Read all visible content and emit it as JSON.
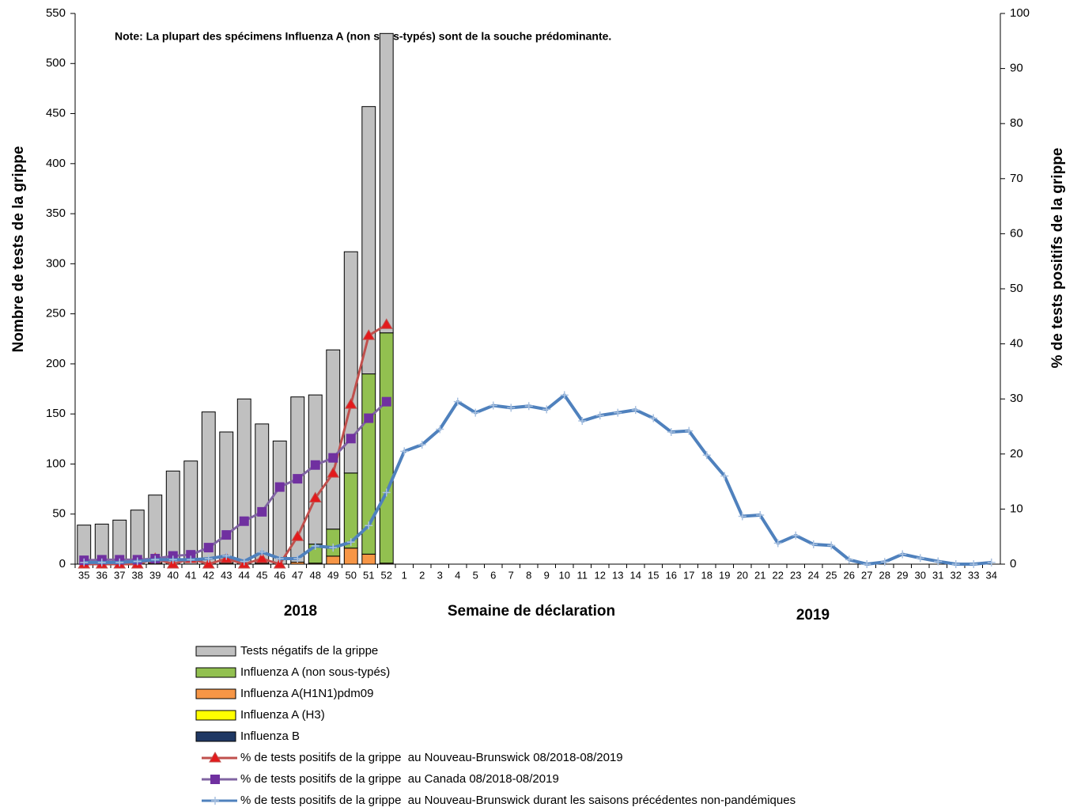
{
  "chart_data": {
    "type": "bar",
    "note": "Note: La plupart des spécimens Influenza A (non sous-typés) sont de la souche prédominante.",
    "ylabel": "Nombre de tests de la grippe",
    "y2label": "% de tests positifs de la grippe",
    "xlabel": "Semaine de déclaration",
    "year_labels": [
      "2018",
      "2019"
    ],
    "categories": [
      "35",
      "36",
      "37",
      "38",
      "39",
      "40",
      "41",
      "42",
      "43",
      "44",
      "45",
      "46",
      "47",
      "48",
      "49",
      "50",
      "51",
      "52",
      "1",
      "2",
      "3",
      "4",
      "5",
      "6",
      "7",
      "8",
      "9",
      "10",
      "11",
      "12",
      "13",
      "14",
      "15",
      "16",
      "17",
      "18",
      "19",
      "20",
      "21",
      "22",
      "23",
      "24",
      "25",
      "26",
      "27",
      "28",
      "29",
      "30",
      "31",
      "32",
      "33",
      "34"
    ],
    "ylim": [
      0,
      550
    ],
    "yticks": [
      0,
      50,
      100,
      150,
      200,
      250,
      300,
      350,
      400,
      450,
      500,
      550
    ],
    "y2lim": [
      0,
      100
    ],
    "y2ticks": [
      0,
      10,
      20,
      30,
      40,
      50,
      60,
      70,
      80,
      90,
      100
    ],
    "series": [
      {
        "name": "Tests négatifs de la grippe",
        "type": "bar",
        "color": "#c0c0c0",
        "values": [
          39,
          40,
          44,
          54,
          68,
          93,
          103,
          152,
          131,
          165,
          139,
          123,
          165,
          149,
          179,
          221,
          267,
          299,
          null,
          null,
          null,
          null,
          null,
          null,
          null,
          null,
          null,
          null,
          null,
          null,
          null,
          null,
          null,
          null,
          null,
          null,
          null,
          null,
          null,
          null,
          null,
          null,
          null,
          null,
          null,
          null,
          null,
          null,
          null,
          null,
          null,
          null
        ]
      },
      {
        "name": "Influenza A (non sous-typés)",
        "type": "bar",
        "color": "#92c050",
        "values": [
          0,
          0,
          0,
          0,
          0,
          0,
          0,
          0,
          0,
          0,
          0,
          0,
          0,
          19,
          27,
          75,
          180,
          230,
          null,
          null,
          null,
          null,
          null,
          null,
          null,
          null,
          null,
          null,
          null,
          null,
          null,
          null,
          null,
          null,
          null,
          null,
          null,
          null,
          null,
          null,
          null,
          null,
          null,
          null,
          null,
          null,
          null,
          null,
          null,
          null,
          null,
          null
        ]
      },
      {
        "name": "Influenza A(H1N1)pdm09",
        "type": "bar",
        "color": "#f79646",
        "values": [
          0,
          0,
          0,
          0,
          1,
          0,
          0,
          0,
          1,
          0,
          1,
          0,
          2,
          1,
          8,
          16,
          10,
          1,
          null,
          null,
          null,
          null,
          null,
          null,
          null,
          null,
          null,
          null,
          null,
          null,
          null,
          null,
          null,
          null,
          null,
          null,
          null,
          null,
          null,
          null,
          null,
          null,
          null,
          null,
          null,
          null,
          null,
          null,
          null,
          null,
          null,
          null
        ]
      },
      {
        "name": "Influenza A (H3)",
        "type": "bar",
        "color": "#ffff00",
        "values": [
          0,
          0,
          0,
          0,
          0,
          0,
          0,
          0,
          0,
          0,
          0,
          0,
          0,
          0,
          0,
          0,
          0,
          0,
          null,
          null,
          null,
          null,
          null,
          null,
          null,
          null,
          null,
          null,
          null,
          null,
          null,
          null,
          null,
          null,
          null,
          null,
          null,
          null,
          null,
          null,
          null,
          null,
          null,
          null,
          null,
          null,
          null,
          null,
          null,
          null,
          null,
          null
        ]
      },
      {
        "name": "Influenza B",
        "type": "bar",
        "color": "#1f3864",
        "values": [
          0,
          0,
          0,
          0,
          0,
          0,
          0,
          0,
          0,
          0,
          0,
          0,
          0,
          0,
          0,
          0,
          0,
          0,
          null,
          null,
          null,
          null,
          null,
          null,
          null,
          null,
          null,
          null,
          null,
          null,
          null,
          null,
          null,
          null,
          null,
          null,
          null,
          null,
          null,
          null,
          null,
          null,
          null,
          null,
          null,
          null,
          null,
          null,
          null,
          null,
          null,
          null
        ]
      },
      {
        "name": "% de tests positifs de la grippe  au Nouveau-Brunswick 08/2018-08/2019",
        "type": "line",
        "axis": "y2",
        "color": "#c0504d",
        "marker": "triangle",
        "marker_color": "#e31a1c",
        "values": [
          0,
          0,
          0,
          0,
          1,
          0,
          1,
          0,
          1,
          0,
          1,
          0,
          5,
          12,
          16.5,
          29,
          41.5,
          43.5,
          null,
          null,
          null,
          null,
          null,
          null,
          null,
          null,
          null,
          null,
          null,
          null,
          null,
          null,
          null,
          null,
          null,
          null,
          null,
          null,
          null,
          null,
          null,
          null,
          null,
          null,
          null,
          null,
          null,
          null,
          null,
          null,
          null,
          null
        ]
      },
      {
        "name": "% de tests positifs de la grippe  au Canada 08/2018-08/2019",
        "type": "line",
        "axis": "y2",
        "color": "#8064a2",
        "marker": "square",
        "marker_color": "#7030a0",
        "values": [
          0.7,
          0.8,
          0.8,
          0.8,
          1,
          1.5,
          1.7,
          3,
          5.3,
          7.8,
          9.5,
          14,
          15.5,
          18,
          19.3,
          22.8,
          26.5,
          29.5,
          null,
          null,
          null,
          null,
          null,
          null,
          null,
          null,
          null,
          null,
          null,
          null,
          null,
          null,
          null,
          null,
          null,
          null,
          null,
          null,
          null,
          null,
          null,
          null,
          null,
          null,
          null,
          null,
          null,
          null,
          null,
          null,
          null,
          null
        ]
      },
      {
        "name": "% de tests positifs de la grippe  au Nouveau-Brunswick durant les saisons précédentes non-pandémiques",
        "type": "line",
        "axis": "y2",
        "color": "#4f81bd",
        "marker": "plus",
        "marker_color": "#a9c1e0",
        "values": [
          0.3,
          0.3,
          0.3,
          0.5,
          0.8,
          0.8,
          0.8,
          1,
          1.5,
          0.5,
          2.2,
          1,
          1,
          3.3,
          3,
          4,
          7,
          13,
          20.5,
          21.7,
          24.5,
          29.5,
          27.5,
          28.8,
          28.4,
          28.7,
          28.1,
          30.7,
          26,
          27,
          27.5,
          28,
          26.5,
          24,
          24.2,
          19.8,
          16,
          8.7,
          8.9,
          3.8,
          5.2,
          3.6,
          3.4,
          0.8,
          0,
          0.4,
          1.8,
          1.1,
          0.5,
          0,
          0,
          0.3
        ]
      }
    ]
  }
}
